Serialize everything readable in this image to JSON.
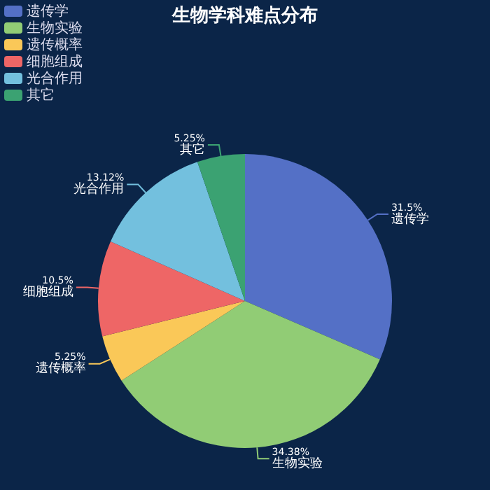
{
  "chart_data": {
    "type": "pie",
    "title": "生物学科难点分布",
    "categories": [
      "遗传学",
      "生物实验",
      "遗传概率",
      "细胞组成",
      "光合作用",
      "其它"
    ],
    "values": [
      31.5,
      34.38,
      5.25,
      10.5,
      13.12,
      5.25
    ],
    "value_labels": [
      "31.5%",
      "34.38%",
      "5.25%",
      "10.5%",
      "13.12%",
      "5.25%"
    ],
    "colors": [
      "#5470c6",
      "#91cc75",
      "#fac858",
      "#ee6666",
      "#73c0de",
      "#3ba272"
    ],
    "legend": "top left"
  }
}
